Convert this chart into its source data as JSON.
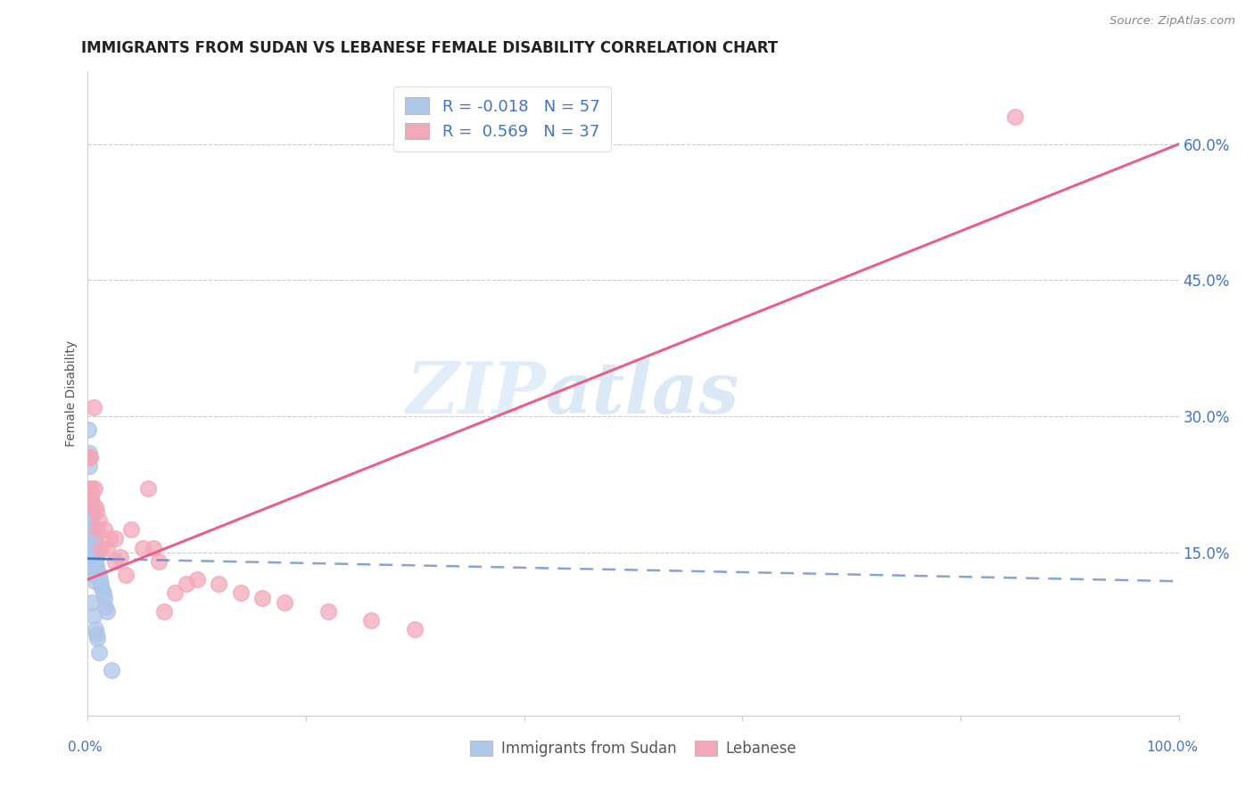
{
  "title": "IMMIGRANTS FROM SUDAN VS LEBANESE FEMALE DISABILITY CORRELATION CHART",
  "source": "Source: ZipAtlas.com",
  "ylabel": "Female Disability",
  "right_yticks": [
    "60.0%",
    "45.0%",
    "30.0%",
    "15.0%"
  ],
  "right_ytick_vals": [
    0.6,
    0.45,
    0.3,
    0.15
  ],
  "sudan_R": -0.018,
  "sudan_N": 57,
  "lebanese_R": 0.569,
  "lebanese_N": 37,
  "sudan_color": "#aec6e8",
  "lebanese_color": "#f4a7b9",
  "sudan_line_color": "#4472c4",
  "lebanese_line_color": "#e8608a",
  "watermark_zip": "ZIP",
  "watermark_atlas": "atlas",
  "xlim": [
    0.0,
    1.0
  ],
  "ylim": [
    -0.03,
    0.68
  ],
  "sudan_line_x0": 0.0,
  "sudan_line_y0": 0.143,
  "sudan_line_x1": 1.0,
  "sudan_line_y1": 0.118,
  "leb_line_x0": 0.0,
  "leb_line_y0": 0.12,
  "leb_line_x1": 1.0,
  "leb_line_y1": 0.6,
  "sudan_scatter_x": [
    0.0005,
    0.001,
    0.001,
    0.0015,
    0.0015,
    0.002,
    0.002,
    0.002,
    0.0025,
    0.0025,
    0.003,
    0.003,
    0.003,
    0.003,
    0.003,
    0.003,
    0.003,
    0.003,
    0.003,
    0.003,
    0.003,
    0.004,
    0.004,
    0.004,
    0.004,
    0.004,
    0.004,
    0.004,
    0.005,
    0.005,
    0.005,
    0.005,
    0.005,
    0.005,
    0.005,
    0.006,
    0.006,
    0.006,
    0.006,
    0.007,
    0.007,
    0.007,
    0.008,
    0.008,
    0.008,
    0.009,
    0.009,
    0.01,
    0.01,
    0.011,
    0.012,
    0.013,
    0.014,
    0.015,
    0.016,
    0.018,
    0.022
  ],
  "sudan_scatter_y": [
    0.285,
    0.26,
    0.14,
    0.245,
    0.135,
    0.22,
    0.155,
    0.132,
    0.215,
    0.145,
    0.21,
    0.2,
    0.19,
    0.185,
    0.175,
    0.165,
    0.16,
    0.155,
    0.15,
    0.14,
    0.13,
    0.175,
    0.17,
    0.165,
    0.158,
    0.148,
    0.143,
    0.095,
    0.175,
    0.165,
    0.155,
    0.148,
    0.14,
    0.125,
    0.08,
    0.16,
    0.155,
    0.145,
    0.118,
    0.155,
    0.14,
    0.065,
    0.145,
    0.135,
    0.06,
    0.13,
    0.055,
    0.125,
    0.04,
    0.12,
    0.115,
    0.11,
    0.105,
    0.1,
    0.09,
    0.085,
    0.02
  ],
  "leb_scatter_x": [
    0.001,
    0.002,
    0.003,
    0.003,
    0.004,
    0.004,
    0.005,
    0.006,
    0.007,
    0.008,
    0.009,
    0.01,
    0.012,
    0.015,
    0.018,
    0.02,
    0.025,
    0.025,
    0.03,
    0.035,
    0.04,
    0.05,
    0.055,
    0.06,
    0.065,
    0.07,
    0.08,
    0.09,
    0.1,
    0.12,
    0.14,
    0.16,
    0.18,
    0.22,
    0.26,
    0.3,
    0.85
  ],
  "leb_scatter_y": [
    0.255,
    0.255,
    0.22,
    0.215,
    0.215,
    0.205,
    0.31,
    0.22,
    0.2,
    0.195,
    0.175,
    0.185,
    0.155,
    0.175,
    0.155,
    0.165,
    0.165,
    0.14,
    0.145,
    0.125,
    0.175,
    0.155,
    0.22,
    0.155,
    0.14,
    0.085,
    0.105,
    0.115,
    0.12,
    0.115,
    0.105,
    0.1,
    0.095,
    0.085,
    0.075,
    0.065,
    0.63
  ]
}
